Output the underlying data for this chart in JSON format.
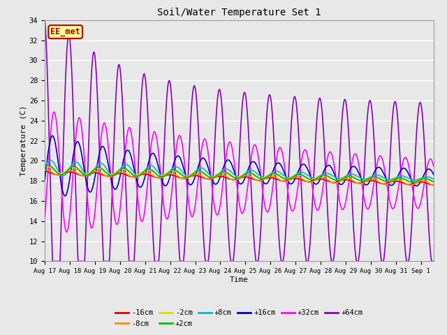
{
  "title": "Soil/Water Temperature Set 1",
  "xlabel": "Time",
  "ylabel": "Temperature (C)",
  "ylim": [
    10,
    34
  ],
  "yticks": [
    10,
    12,
    14,
    16,
    18,
    20,
    22,
    24,
    26,
    28,
    30,
    32,
    34
  ],
  "xlim_days": [
    0,
    15.5
  ],
  "background_color": "#e8e8e8",
  "plot_bg_color": "#e8e8e8",
  "grid_color": "#ffffff",
  "series": {
    "-16cm": {
      "color": "#dd0000",
      "linewidth": 1.2
    },
    "-8cm": {
      "color": "#ff8800",
      "linewidth": 1.2
    },
    "-2cm": {
      "color": "#dddd00",
      "linewidth": 1.2
    },
    "+2cm": {
      "color": "#00bb00",
      "linewidth": 1.2
    },
    "+8cm": {
      "color": "#00bbbb",
      "linewidth": 1.2
    },
    "+16cm": {
      "color": "#0000bb",
      "linewidth": 1.2
    },
    "+32cm": {
      "color": "#ff00ff",
      "linewidth": 1.2
    },
    "+64cm": {
      "color": "#8800bb",
      "linewidth": 1.2
    }
  },
  "watermark": "EE_met",
  "watermark_color": "#aa0000",
  "watermark_bg": "#ffff99",
  "tick_labels": [
    "Aug 17",
    "Aug 18",
    "Aug 19",
    "Aug 20",
    "Aug 21",
    "Aug 22",
    "Aug 23",
    "Aug 24",
    "Aug 25",
    "Aug 26",
    "Aug 27",
    "Aug 28",
    "Aug 29",
    "Aug 30",
    "Aug 31",
    "Sep 1"
  ],
  "tick_positions": [
    0,
    1,
    2,
    3,
    4,
    5,
    6,
    7,
    8,
    9,
    10,
    11,
    12,
    13,
    14,
    15
  ]
}
